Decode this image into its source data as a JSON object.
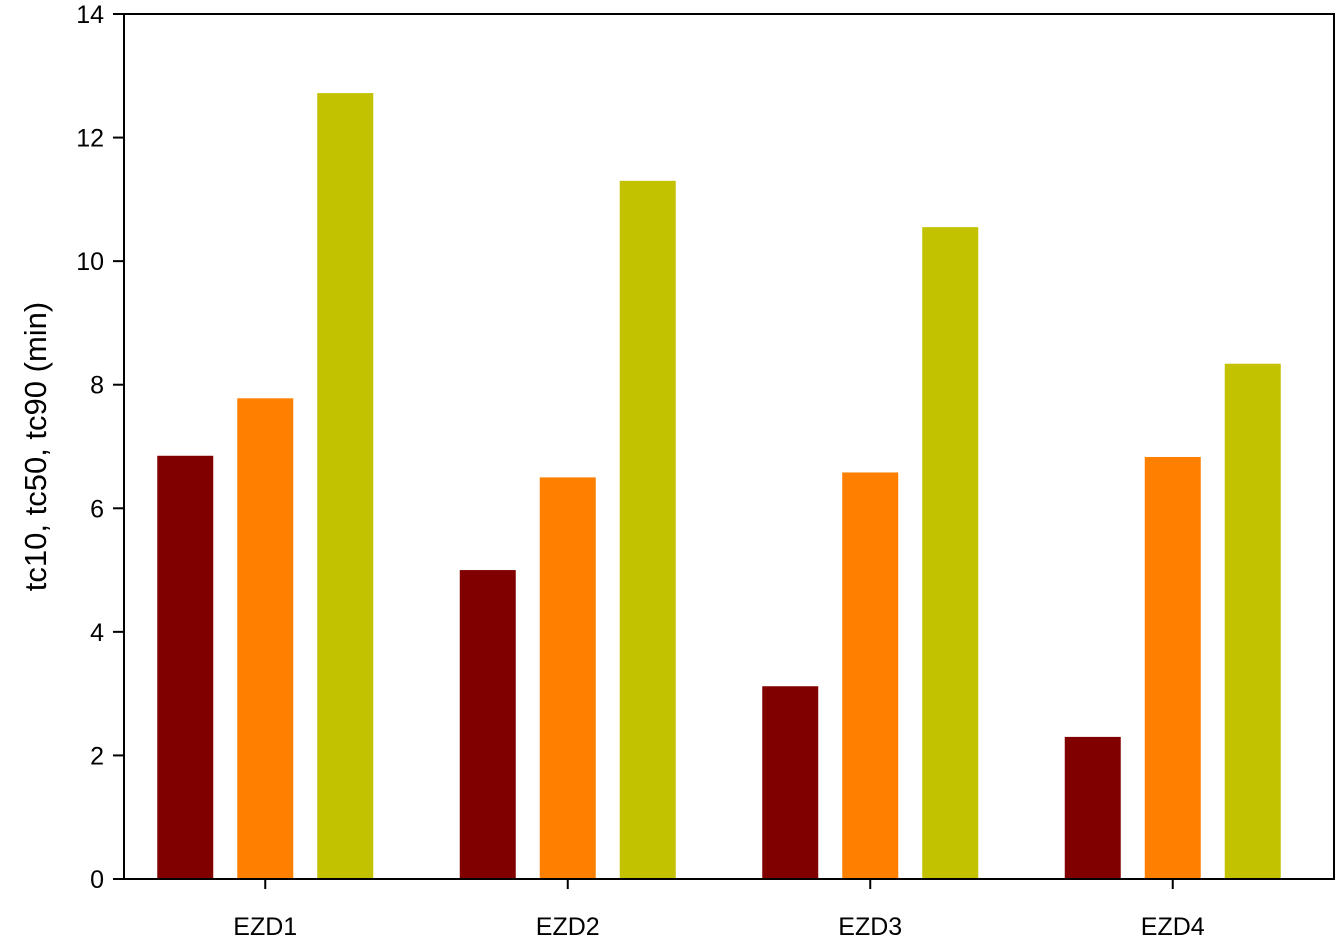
{
  "chart_data": {
    "type": "bar",
    "title": "",
    "xlabel": "",
    "ylabel": "tc10, tc50, tc90 (min)",
    "categories": [
      "EZD1",
      "EZD2",
      "EZD3",
      "EZD4"
    ],
    "series": [
      {
        "values": [
          6.85,
          5.0,
          3.12,
          2.3
        ],
        "color": "#800000"
      },
      {
        "values": [
          7.78,
          6.5,
          6.58,
          6.83
        ],
        "color": "#ff8000"
      },
      {
        "values": [
          12.72,
          11.3,
          10.55,
          8.34
        ],
        "color": "#c2c200"
      }
    ],
    "ylim": [
      0,
      14
    ],
    "yticks": [
      0,
      2,
      4,
      6,
      8,
      10,
      12,
      14
    ],
    "grid": false,
    "legend": "none"
  }
}
